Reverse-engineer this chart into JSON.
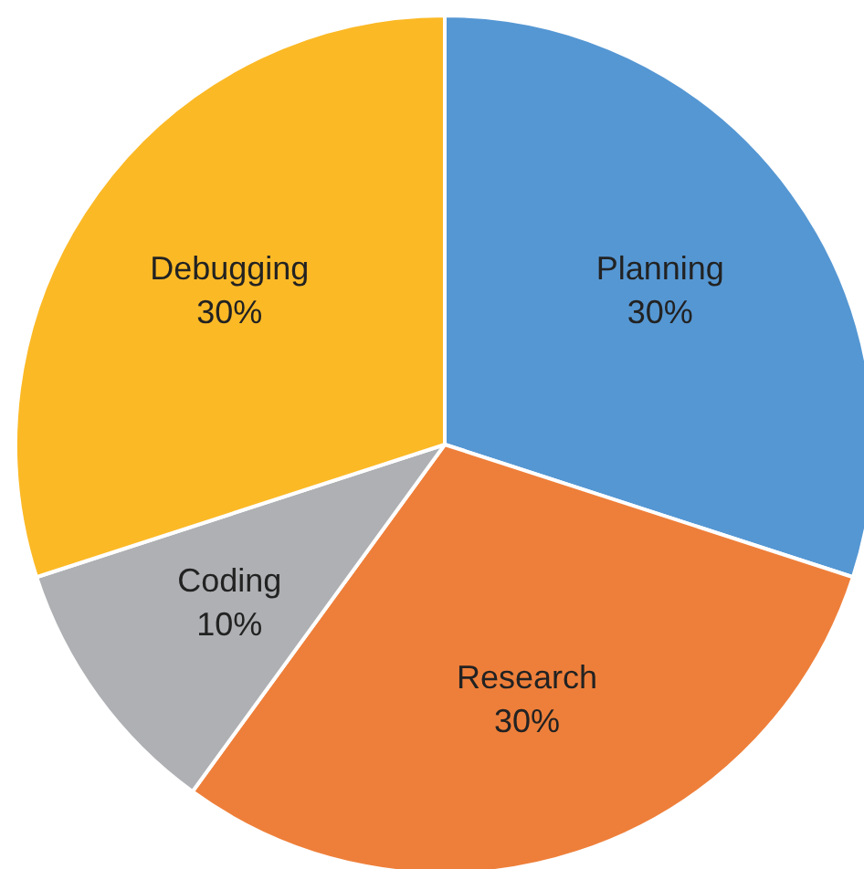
{
  "chart_data": {
    "type": "pie",
    "categories": [
      "Planning",
      "Research",
      "Coding",
      "Debugging"
    ],
    "values": [
      30,
      30,
      10,
      30
    ],
    "colors": [
      "#5597d3",
      "#ee7f3a",
      "#aeb0b3",
      "#fbb926"
    ],
    "value_labels": [
      "30%",
      "30%",
      "10%",
      "30%"
    ]
  }
}
